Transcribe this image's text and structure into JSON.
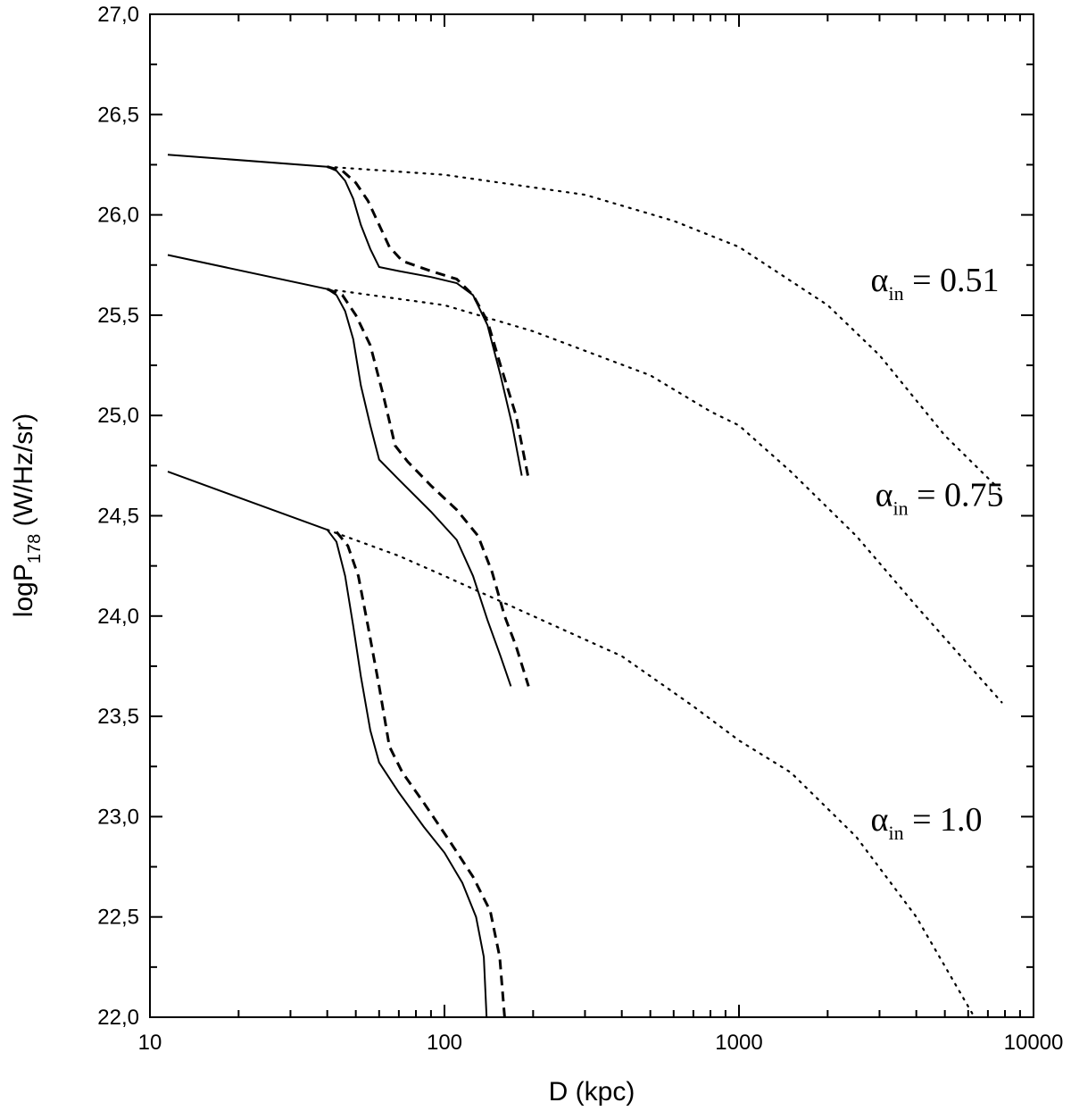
{
  "chart_data": {
    "type": "line",
    "xlabel": "D (kpc)",
    "ylabel_main": "logP",
    "ylabel_sub": "178",
    "ylabel_unit": " (W/Hz/sr)",
    "xscale": "log",
    "xlim": [
      10,
      10000
    ],
    "ylim": [
      22.0,
      27.0
    ],
    "x_ticks": [
      {
        "value": 10,
        "label": "10"
      },
      {
        "value": 100,
        "label": "100"
      },
      {
        "value": 1000,
        "label": "1000"
      },
      {
        "value": 10000,
        "label": "10000"
      }
    ],
    "y_ticks": [
      {
        "value": 22.0,
        "label": "22,0"
      },
      {
        "value": 22.5,
        "label": "22,5"
      },
      {
        "value": 23.0,
        "label": "23,0"
      },
      {
        "value": 23.5,
        "label": "23,5"
      },
      {
        "value": 24.0,
        "label": "24,0"
      },
      {
        "value": 24.5,
        "label": "24,5"
      },
      {
        "value": 25.0,
        "label": "25,0"
      },
      {
        "value": 25.5,
        "label": "25,5"
      },
      {
        "value": 26.0,
        "label": "26,0"
      },
      {
        "value": 26.5,
        "label": "26,5"
      },
      {
        "value": 27.0,
        "label": "27,0"
      }
    ],
    "grid": false,
    "annotations": [
      {
        "symbol": "α",
        "sub": "in",
        "text": " = 0.51",
        "x": 2800,
        "y": 25.62
      },
      {
        "symbol": "α",
        "sub": "in",
        "text": " = 0.75",
        "x": 2900,
        "y": 24.55
      },
      {
        "symbol": "α",
        "sub": "in",
        "text": " = 1.0",
        "x": 2800,
        "y": 22.93
      }
    ],
    "series": [
      {
        "group": "0.51",
        "style": "solid",
        "points": [
          [
            11.5,
            26.3
          ],
          [
            40,
            26.24
          ],
          [
            43,
            26.22
          ],
          [
            46,
            26.17
          ],
          [
            49,
            26.08
          ],
          [
            52,
            25.95
          ],
          [
            56,
            25.83
          ],
          [
            60,
            25.74
          ],
          [
            70,
            25.72
          ],
          [
            90,
            25.69
          ],
          [
            110,
            25.66
          ],
          [
            125,
            25.6
          ],
          [
            140,
            25.45
          ],
          [
            155,
            25.2
          ],
          [
            170,
            24.95
          ],
          [
            183,
            24.7
          ]
        ]
      },
      {
        "group": "0.51",
        "style": "dashed",
        "points": [
          [
            40,
            26.24
          ],
          [
            45,
            26.22
          ],
          [
            50,
            26.16
          ],
          [
            55,
            26.07
          ],
          [
            60,
            25.95
          ],
          [
            65,
            25.84
          ],
          [
            72,
            25.77
          ],
          [
            90,
            25.72
          ],
          [
            110,
            25.68
          ],
          [
            125,
            25.6
          ],
          [
            140,
            25.47
          ],
          [
            155,
            25.25
          ],
          [
            175,
            25.0
          ],
          [
            192,
            24.7
          ]
        ]
      },
      {
        "group": "0.51",
        "style": "dotted",
        "points": [
          [
            40,
            26.24
          ],
          [
            100,
            26.2
          ],
          [
            300,
            26.1
          ],
          [
            600,
            25.97
          ],
          [
            1000,
            25.84
          ],
          [
            2000,
            25.55
          ],
          [
            3000,
            25.3
          ],
          [
            5000,
            24.9
          ],
          [
            7800,
            24.62
          ]
        ]
      },
      {
        "group": "0.75",
        "style": "solid",
        "points": [
          [
            11.5,
            25.8
          ],
          [
            40,
            25.63
          ],
          [
            43,
            25.6
          ],
          [
            46,
            25.52
          ],
          [
            49,
            25.38
          ],
          [
            52,
            25.15
          ],
          [
            56,
            24.95
          ],
          [
            60,
            24.78
          ],
          [
            70,
            24.68
          ],
          [
            90,
            24.52
          ],
          [
            110,
            24.38
          ],
          [
            125,
            24.2
          ],
          [
            140,
            23.98
          ],
          [
            155,
            23.8
          ],
          [
            168,
            23.65
          ]
        ]
      },
      {
        "group": "0.75",
        "style": "dashed",
        "points": [
          [
            40,
            25.63
          ],
          [
            45,
            25.6
          ],
          [
            50,
            25.5
          ],
          [
            56,
            25.35
          ],
          [
            62,
            25.1
          ],
          [
            68,
            24.85
          ],
          [
            75,
            24.77
          ],
          [
            90,
            24.65
          ],
          [
            110,
            24.53
          ],
          [
            130,
            24.4
          ],
          [
            145,
            24.22
          ],
          [
            160,
            24.0
          ],
          [
            175,
            23.85
          ],
          [
            193,
            23.65
          ]
        ]
      },
      {
        "group": "0.75",
        "style": "dotted",
        "points": [
          [
            40,
            25.63
          ],
          [
            100,
            25.55
          ],
          [
            200,
            25.42
          ],
          [
            500,
            25.2
          ],
          [
            800,
            25.02
          ],
          [
            1000,
            24.95
          ],
          [
            1500,
            24.72
          ],
          [
            2500,
            24.4
          ],
          [
            4000,
            24.05
          ],
          [
            7800,
            23.57
          ]
        ]
      },
      {
        "group": "1.0",
        "style": "solid",
        "points": [
          [
            11.5,
            24.72
          ],
          [
            40,
            24.43
          ],
          [
            43,
            24.37
          ],
          [
            46,
            24.2
          ],
          [
            49,
            23.95
          ],
          [
            52,
            23.7
          ],
          [
            56,
            23.43
          ],
          [
            60,
            23.27
          ],
          [
            70,
            23.12
          ],
          [
            85,
            22.95
          ],
          [
            100,
            22.82
          ],
          [
            115,
            22.67
          ],
          [
            128,
            22.5
          ],
          [
            136,
            22.3
          ],
          [
            139,
            22.0
          ]
        ]
      },
      {
        "group": "1.0",
        "style": "dashed",
        "points": [
          [
            43,
            24.42
          ],
          [
            47,
            24.35
          ],
          [
            51,
            24.2
          ],
          [
            55,
            23.95
          ],
          [
            60,
            23.65
          ],
          [
            65,
            23.35
          ],
          [
            72,
            23.22
          ],
          [
            85,
            23.07
          ],
          [
            105,
            22.87
          ],
          [
            125,
            22.7
          ],
          [
            143,
            22.53
          ],
          [
            154,
            22.3
          ],
          [
            160,
            22.0
          ]
        ]
      },
      {
        "group": "1.0",
        "style": "dotted",
        "points": [
          [
            40,
            24.43
          ],
          [
            70,
            24.3
          ],
          [
            100,
            24.2
          ],
          [
            200,
            24.0
          ],
          [
            400,
            23.8
          ],
          [
            700,
            23.55
          ],
          [
            1000,
            23.38
          ],
          [
            1500,
            23.22
          ],
          [
            2500,
            22.9
          ],
          [
            4000,
            22.5
          ],
          [
            6300,
            22.0
          ]
        ]
      }
    ]
  }
}
